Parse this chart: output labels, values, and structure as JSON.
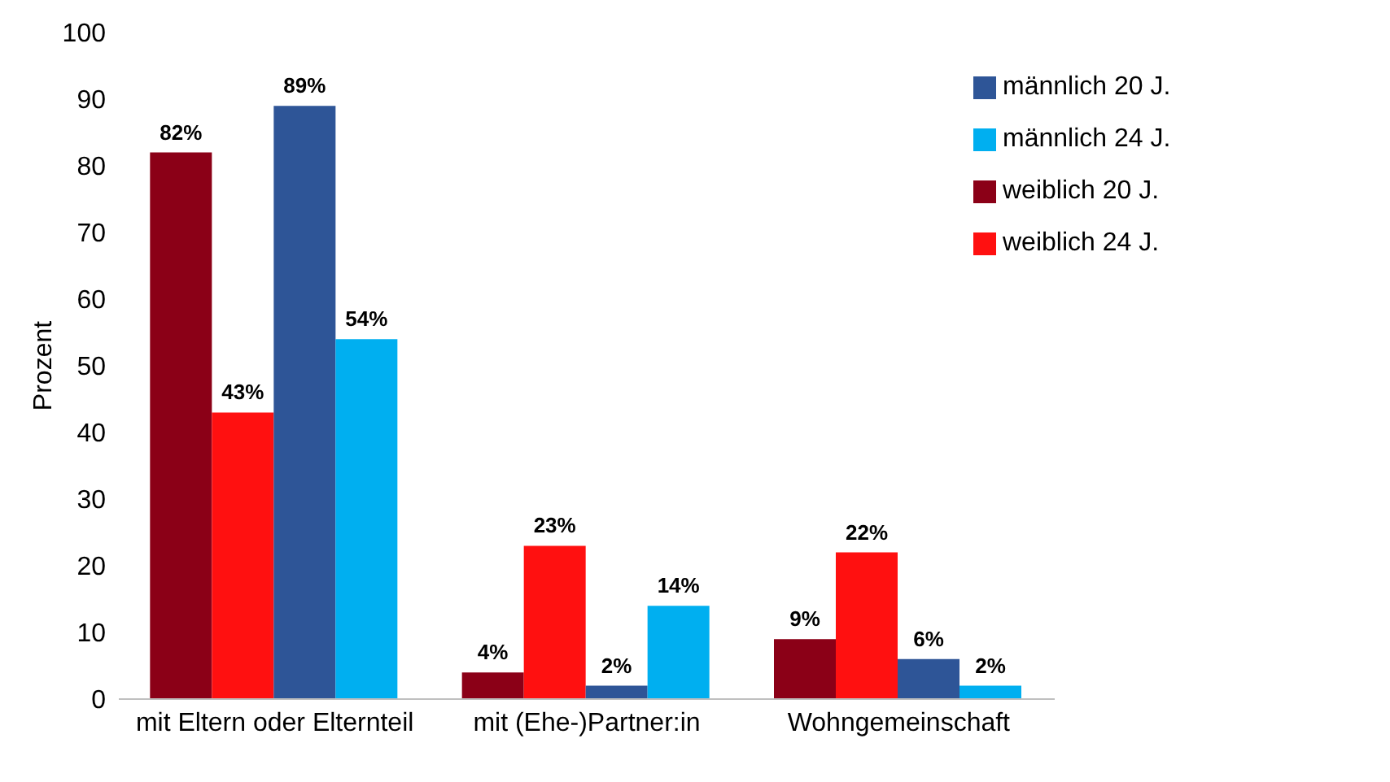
{
  "chart_data": {
    "type": "bar",
    "ylabel": "Prozent",
    "categories": [
      "mit Eltern oder Elternteil",
      "mit (Ehe-)Partner:in",
      "Wohngemeinschaft"
    ],
    "series": [
      {
        "name": "weiblich 20 J.",
        "color": "#8b0017",
        "values": [
          82,
          4,
          9
        ],
        "value_labels": [
          "82%",
          "4%",
          "9%"
        ]
      },
      {
        "name": "weiblich 24 J.",
        "color": "#ff1010",
        "values": [
          43,
          23,
          22
        ],
        "value_labels": [
          "43%",
          "23%",
          "22%"
        ]
      },
      {
        "name": "männlich 20 J.",
        "color": "#2e5597",
        "values": [
          89,
          2,
          6
        ],
        "value_labels": [
          "89%",
          "2%",
          "6%"
        ]
      },
      {
        "name": "männlich 24 J.",
        "color": "#00aff0",
        "values": [
          54,
          14,
          2
        ],
        "value_labels": [
          "54%",
          "14%",
          "2%"
        ]
      }
    ],
    "ylim": [
      0,
      100
    ],
    "yticks": [
      0,
      10,
      20,
      30,
      40,
      50,
      60,
      70,
      80,
      90,
      100
    ],
    "grid": false,
    "legend": "top right"
  }
}
